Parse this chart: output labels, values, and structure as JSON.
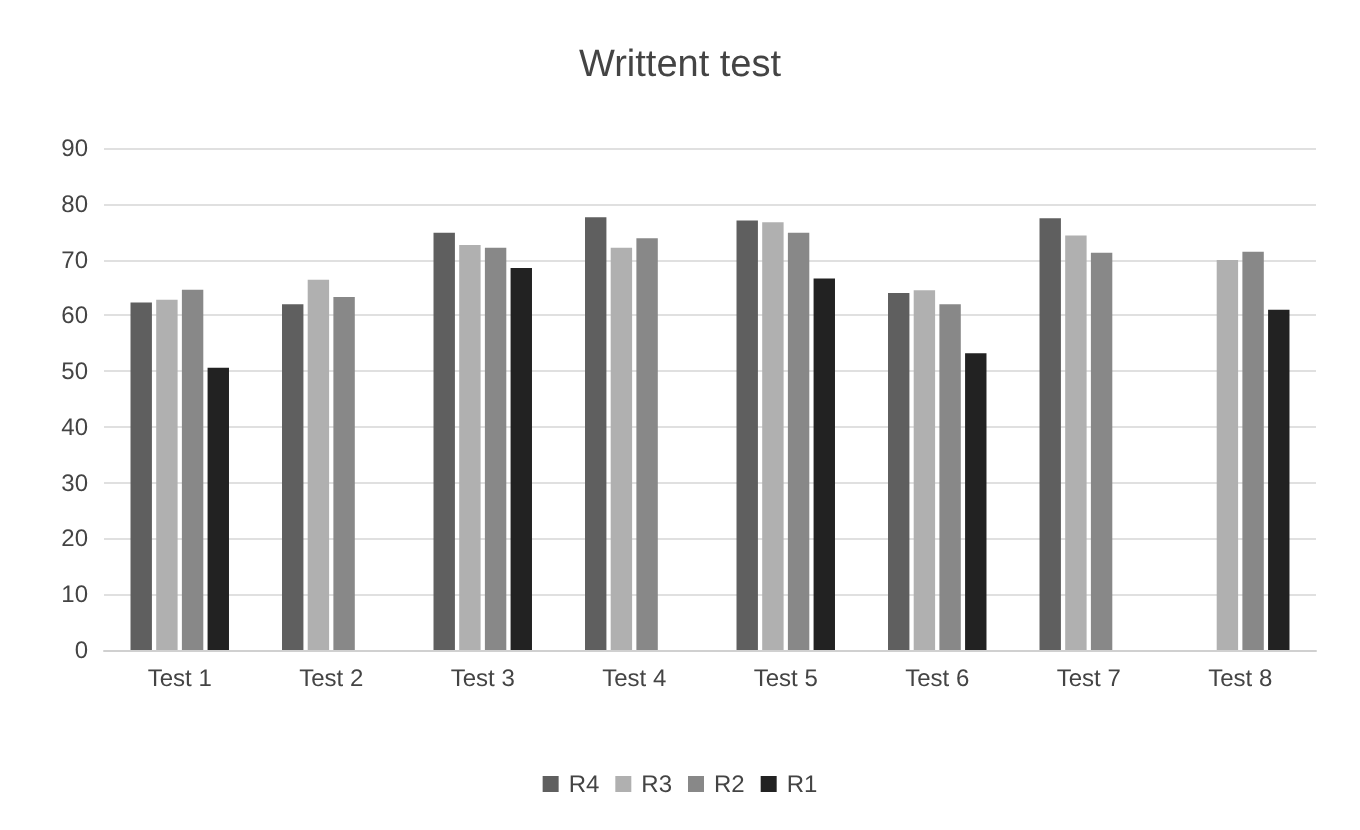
{
  "chart_data": {
    "type": "bar",
    "title": "Writtent test",
    "categories": [
      "Test 1",
      "Test 2",
      "Test 3",
      "Test 4",
      "Test 5",
      "Test 6",
      "Test 7",
      "Test 8"
    ],
    "series": [
      {
        "name": "R4",
        "color": "#5f5f5f",
        "values": [
          62.3,
          62.0,
          74.8,
          77.6,
          77.0,
          64.0,
          77.4,
          null
        ]
      },
      {
        "name": "R3",
        "color": "#b0b0b0",
        "values": [
          62.8,
          66.4,
          72.6,
          72.1,
          76.7,
          64.5,
          74.3,
          69.9
        ]
      },
      {
        "name": "R2",
        "color": "#888888",
        "values": [
          64.6,
          63.3,
          72.1,
          73.8,
          74.8,
          62.0,
          71.2,
          71.4
        ]
      },
      {
        "name": "R1",
        "color": "#222222",
        "values": [
          50.6,
          null,
          68.5,
          null,
          66.6,
          53.2,
          null,
          61.0
        ]
      }
    ],
    "ylim": [
      0,
      90
    ],
    "yticks": [
      0,
      10,
      20,
      30,
      40,
      50,
      60,
      70,
      80,
      90
    ],
    "grid": "y",
    "legend": "bottom"
  }
}
